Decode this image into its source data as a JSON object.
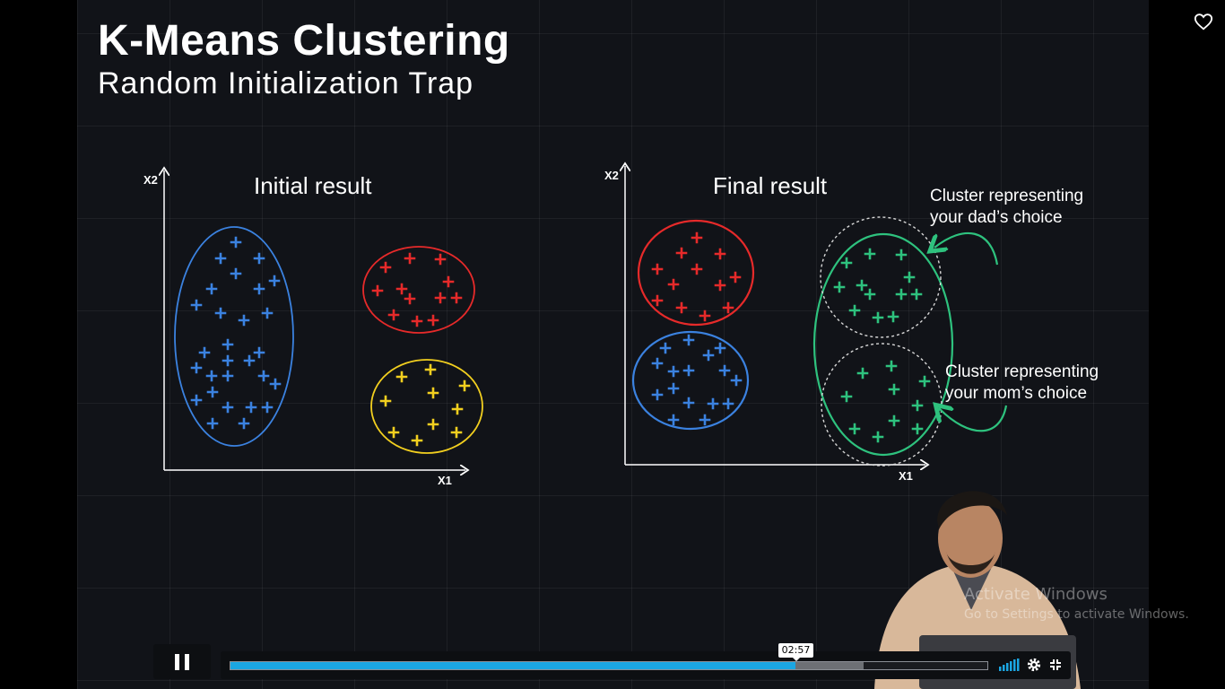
{
  "slide": {
    "title": "K-Means Clustering",
    "subtitle": "Random Initialization Trap"
  },
  "left_chart": {
    "title": "Initial result",
    "xlabel": "X1",
    "ylabel": "X2"
  },
  "right_chart": {
    "title": "Final result",
    "xlabel": "X1",
    "ylabel": "X2",
    "annotation_dad_line1": "Cluster representing",
    "annotation_dad_line2": "your dad’s choice",
    "annotation_mom_line1": "Cluster representing",
    "annotation_mom_line2": "your mom’s choice"
  },
  "colors": {
    "blue": "#3b82e0",
    "red": "#e62a2a",
    "yellow": "#f2cf1f",
    "green": "#2ec27e",
    "progress": "#1ba6e2"
  },
  "player": {
    "current_time": "02:57",
    "progress": 0.746,
    "buffered": 0.836,
    "play_state_icon": "pause-icon",
    "favorite_icon": "heart-icon",
    "volume_icon": "volume-icon",
    "settings_icon": "gear-icon",
    "fullscreen_icon": "fullscreen-icon"
  },
  "watermark": {
    "line1": "Activate Windows",
    "line2": "Go to Settings to activate Windows."
  }
}
